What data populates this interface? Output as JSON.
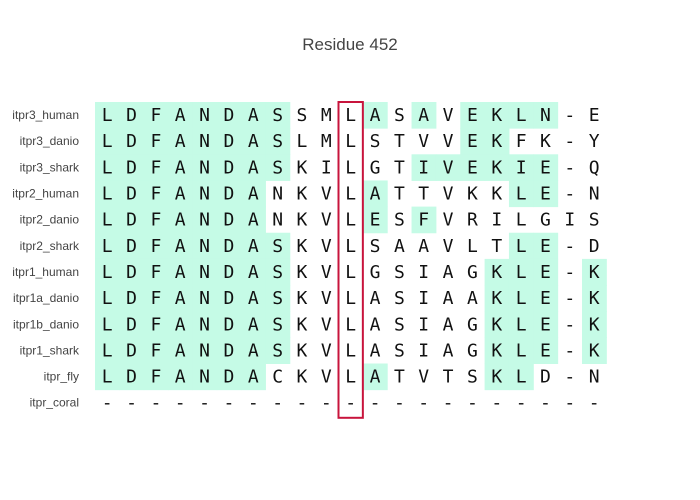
{
  "title": "Residue 452",
  "colors": {
    "highlight": "#c5fbe6",
    "box": "#c8143c",
    "text": "#111111",
    "label": "#444444"
  },
  "highlighted_position": 11,
  "alignment": [
    {
      "name": "itpr3_human",
      "seq": "LDFANDASSMLASAVEKLN-E",
      "mask": "111111110001010111100"
    },
    {
      "name": "itpr3_danio",
      "seq": "LDFANDASLMLSTVVEKFK-Y",
      "mask": "111111110000000110000"
    },
    {
      "name": "itpr3_shark",
      "seq": "LDFANDASKILGTIVEKIE-Q",
      "mask": "111111110000011111100"
    },
    {
      "name": "itpr2_human",
      "seq": "LDFANDANKVLATTVKKLE-N",
      "mask": "111111100001000001100"
    },
    {
      "name": "itpr2_danio",
      "seq": "LDFANDANKVLESFVRILGIS",
      "mask": "111111100001010000000"
    },
    {
      "name": "itpr2_shark",
      "seq": "LDFANDASKVLSAAVLTLE-D",
      "mask": "111111110000000001100"
    },
    {
      "name": "itpr1_human",
      "seq": "LDFANDASKVLGSIAGKLE-K",
      "mask": "111111110000000011101"
    },
    {
      "name": "itpr1a_danio",
      "seq": "LDFANDASKVLASIAAKLE-K",
      "mask": "111111110000000011101"
    },
    {
      "name": "itpr1b_danio",
      "seq": "LDFANDASKVLASIAGKLE-K",
      "mask": "111111110000000011101"
    },
    {
      "name": "itpr1_shark",
      "seq": "LDFANDASKVLASIAGKLE-K",
      "mask": "111111110000000011101"
    },
    {
      "name": "itpr_fly",
      "seq": "LDFANDACKVLATVTSKLD-N",
      "mask": "111111100001000011000"
    },
    {
      "name": "itpr_coral",
      "seq": "---------------------",
      "mask": "000000000000000000000"
    }
  ]
}
